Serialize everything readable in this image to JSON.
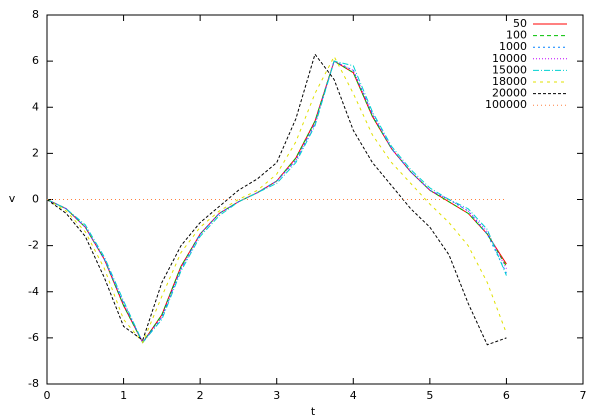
{
  "chart_data": {
    "type": "line",
    "xlabel": "t",
    "ylabel": "v",
    "x": [
      0,
      0.25,
      0.5,
      0.75,
      1,
      1.25,
      1.5,
      1.75,
      2,
      2.25,
      2.5,
      2.75,
      3,
      3.25,
      3.5,
      3.75,
      4,
      4.25,
      4.5,
      4.75,
      5,
      5.25,
      5.5,
      5.75,
      6
    ],
    "xlim": [
      0,
      7
    ],
    "xticks": [
      0,
      1,
      2,
      3,
      4,
      5,
      6,
      7
    ],
    "ylim": [
      -8,
      8
    ],
    "yticks": [
      -8,
      -6,
      -4,
      -2,
      0,
      2,
      4,
      6,
      8
    ],
    "legend": "upper right",
    "series": [
      {
        "name": "50",
        "color": "#ff0000",
        "values": [
          0,
          -0.4,
          -1.2,
          -2.6,
          -4.6,
          -6.2,
          -5.0,
          -2.9,
          -1.5,
          -0.6,
          -0.1,
          0.3,
          0.8,
          1.8,
          3.4,
          6.0,
          5.5,
          3.6,
          2.2,
          1.2,
          0.4,
          -0.1,
          -0.6,
          -1.5,
          -2.8
        ]
      },
      {
        "name": "100",
        "color": "#00c000",
        "values": [
          0,
          -0.4,
          -1.2,
          -2.6,
          -4.6,
          -6.2,
          -5.0,
          -2.9,
          -1.5,
          -0.6,
          -0.1,
          0.3,
          0.8,
          1.8,
          3.4,
          6.0,
          5.5,
          3.6,
          2.2,
          1.2,
          0.4,
          -0.1,
          -0.6,
          -1.5,
          -2.9
        ]
      },
      {
        "name": "1000",
        "color": "#0080ff",
        "values": [
          0,
          -0.4,
          -1.2,
          -2.6,
          -4.5,
          -6.2,
          -5.1,
          -3.0,
          -1.5,
          -0.6,
          -0.1,
          0.3,
          0.8,
          1.7,
          3.3,
          6.0,
          5.6,
          3.7,
          2.2,
          1.2,
          0.4,
          0.0,
          -0.5,
          -1.5,
          -3.2
        ]
      },
      {
        "name": "10000",
        "color": "#c000ff",
        "values": [
          0,
          -0.4,
          -1.2,
          -2.6,
          -4.5,
          -6.2,
          -5.1,
          -3.0,
          -1.5,
          -0.6,
          -0.1,
          0.3,
          0.8,
          1.7,
          3.3,
          6.0,
          5.6,
          3.7,
          2.2,
          1.2,
          0.4,
          0.0,
          -0.5,
          -1.4,
          -3.0
        ]
      },
      {
        "name": "15000",
        "color": "#00d0d0",
        "values": [
          0,
          -0.4,
          -1.1,
          -2.5,
          -4.4,
          -6.2,
          -5.2,
          -3.1,
          -1.6,
          -0.7,
          -0.1,
          0.3,
          0.7,
          1.6,
          3.2,
          6.0,
          5.8,
          3.8,
          2.3,
          1.3,
          0.5,
          0.0,
          -0.4,
          -1.3,
          -3.3
        ]
      },
      {
        "name": "18000",
        "color": "#e0e000",
        "values": [
          0,
          -0.5,
          -1.4,
          -3.0,
          -5.2,
          -6.2,
          -4.2,
          -2.3,
          -1.2,
          -0.5,
          0,
          0.4,
          1.1,
          2.5,
          4.6,
          6.2,
          4.6,
          2.8,
          1.6,
          0.7,
          -0.2,
          -1.0,
          -2.0,
          -3.6,
          -5.8
        ]
      },
      {
        "name": "20000",
        "color": "#000000",
        "values": [
          0,
          -0.6,
          -1.6,
          -3.4,
          -5.5,
          -6.1,
          -3.6,
          -2.0,
          -1.0,
          -0.3,
          0.4,
          0.9,
          1.6,
          3.5,
          6.3,
          5.2,
          3.0,
          1.6,
          0.6,
          -0.4,
          -1.2,
          -2.4,
          -4.5,
          -6.3,
          -6.0
        ]
      },
      {
        "name": "100000",
        "color": "#ff8040",
        "values": [
          0,
          0,
          0,
          0,
          0,
          0,
          0,
          0,
          0,
          0,
          0,
          0,
          0,
          0,
          0,
          0,
          0,
          0,
          0,
          0,
          0,
          0,
          0,
          0,
          0
        ]
      }
    ]
  }
}
